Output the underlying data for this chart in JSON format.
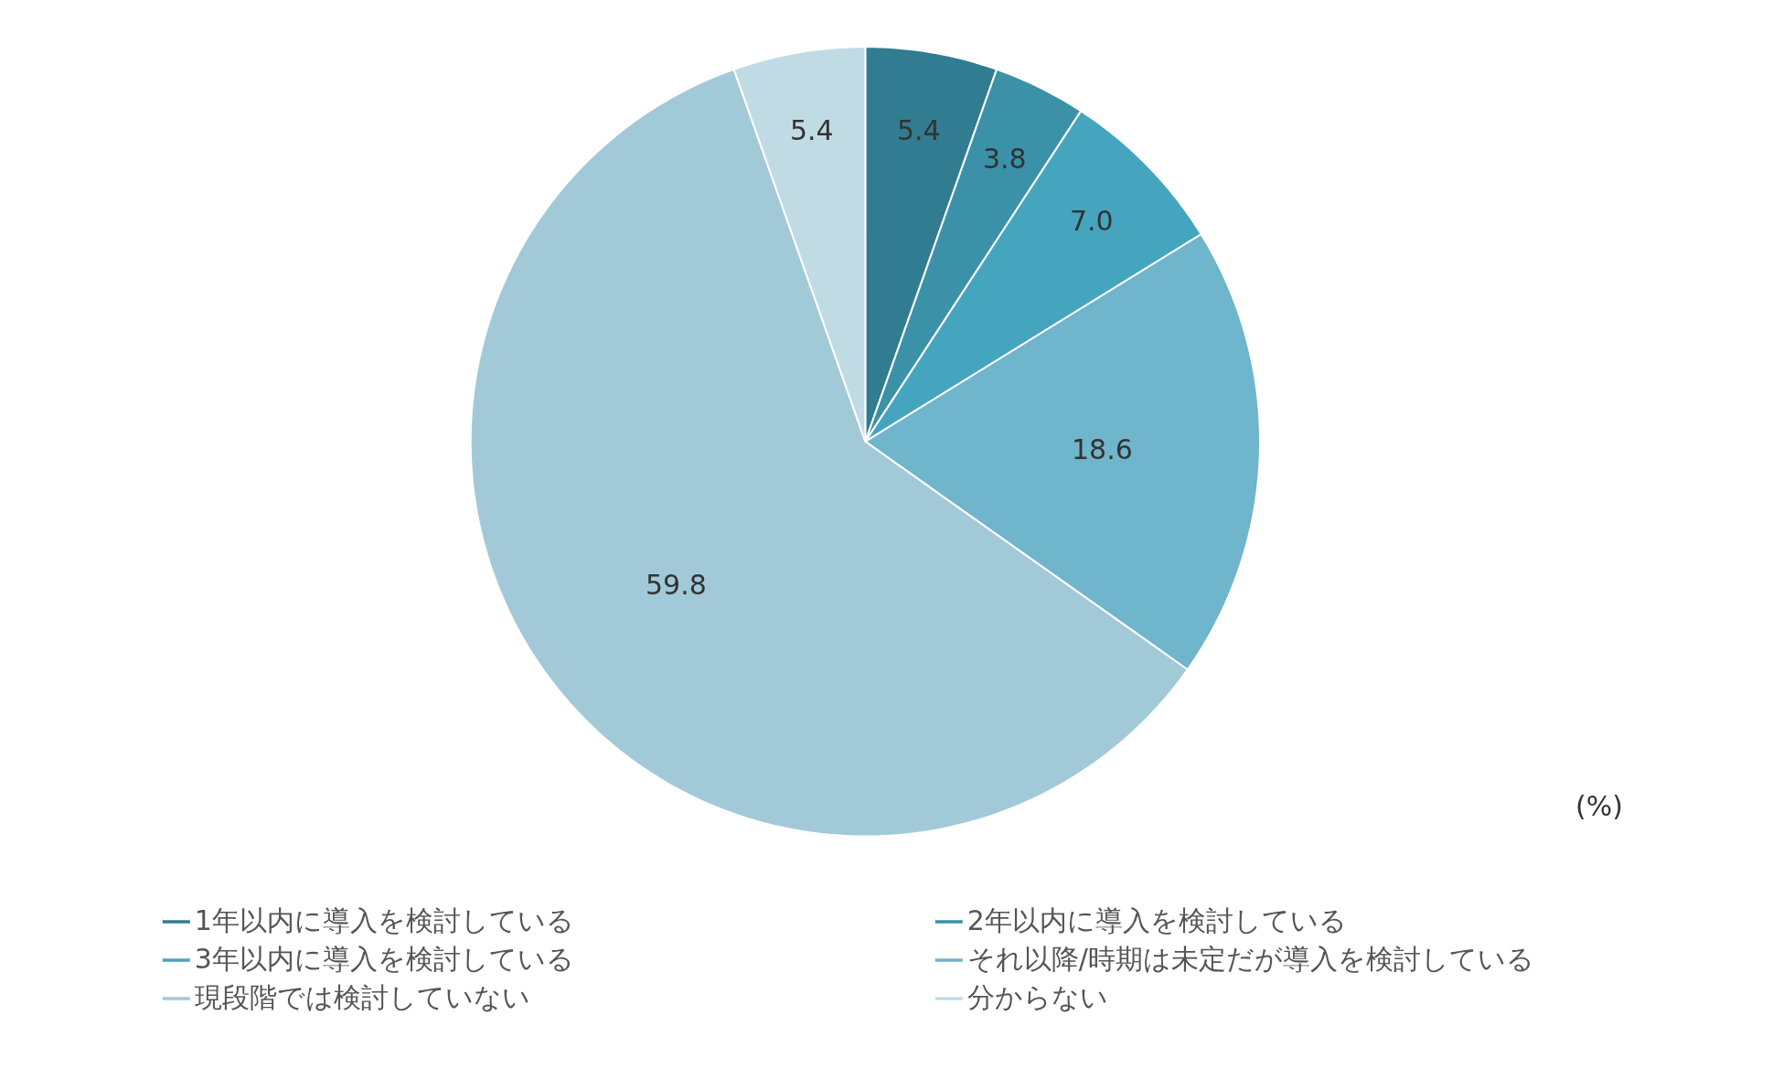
{
  "chart_data": {
    "type": "pie",
    "categories": [
      "1年以内に導入を検討している",
      "2年以内に導入を検討している",
      "3年以内に導入を検討している",
      "それ以降/時期は未定だが導入を検討している",
      "現段階では検討していない",
      "分からない"
    ],
    "values": [
      5.4,
      3.8,
      7.0,
      18.6,
      59.8,
      5.4
    ],
    "colors": [
      "#317c91",
      "#3b91a8",
      "#45a5bf",
      "#6fb5cc",
      "#a2c9d8",
      "#c0dbe4"
    ],
    "data_labels": true,
    "value_labels": [
      "5.4",
      "3.8",
      "7.0",
      "18.6",
      "59.8",
      "5.4"
    ],
    "legend": "bottom",
    "annotations": [
      "(%)"
    ]
  }
}
